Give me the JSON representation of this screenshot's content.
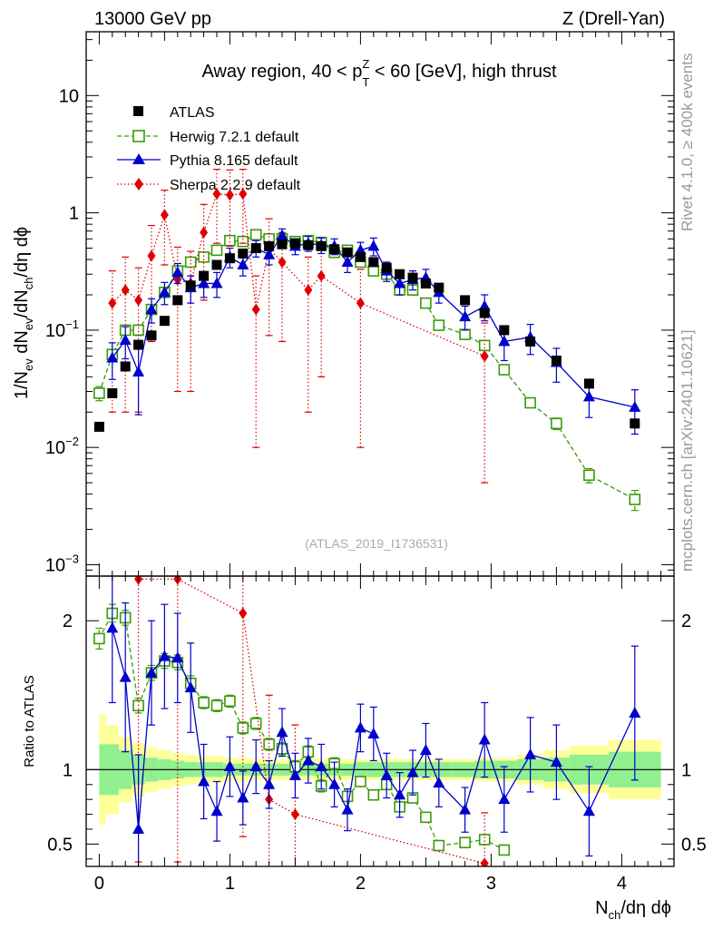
{
  "header": {
    "left": "13000 GeV pp",
    "right": "Z (Drell-Yan)"
  },
  "side_labels": {
    "top": "Rivet 4.1.0, ≥ 400k events",
    "bottom": "mcplots.cern.ch [arXiv:2401.10621]"
  },
  "watermark": "(ATLAS_2019_I1736531)",
  "colors": {
    "atlas": "#000000",
    "herwig": "#3a9a0a",
    "pythia": "#0000cc",
    "sherpa": "#e00000",
    "band_inner": "#90f090",
    "band_outer": "#ffff99"
  },
  "chart_data": [
    {
      "type": "scatter",
      "panel": "main",
      "title": "Away region, 40 < p_T^Z < 60 [GeV], high thrust",
      "title_parts": {
        "prefix": "Away region, 40 < p",
        "sub": "T",
        "sup": "Z",
        "suffix": " < 60 [GeV], high thrust"
      },
      "ylabel": "1/N_ev dN_ev/dN_ch/dη dϕ",
      "ylabel_parts": {
        "a": "1/N",
        "a_sub": "ev",
        "b": " dN",
        "b_sub": "ev",
        "c": "/dN",
        "c_sub": "ch",
        "d": "/dη dϕ"
      },
      "yscale": "log",
      "ylim": [
        0.0008,
        35
      ],
      "xlim": [
        -0.1,
        4.4
      ],
      "yticks": [
        {
          "value": 0.001,
          "base": "10",
          "exp": "−3"
        },
        {
          "value": 0.01,
          "base": "10",
          "exp": "−2"
        },
        {
          "value": 0.1,
          "base": "10",
          "exp": "−1"
        },
        {
          "value": 1,
          "base": "1",
          "exp": ""
        },
        {
          "value": 10,
          "base": "10",
          "exp": ""
        }
      ],
      "legend_position": "top-left",
      "series": [
        {
          "name": "ATLAS",
          "marker": "square",
          "x": [
            0.0,
            0.1,
            0.2,
            0.3,
            0.4,
            0.5,
            0.6,
            0.7,
            0.8,
            0.9,
            1.0,
            1.1,
            1.2,
            1.3,
            1.4,
            1.5,
            1.6,
            1.7,
            1.8,
            1.9,
            2.0,
            2.1,
            2.2,
            2.3,
            2.4,
            2.5,
            2.6,
            2.8,
            2.95,
            3.1,
            3.3,
            3.5,
            3.75,
            4.1
          ],
          "y": [
            0.015,
            0.029,
            0.049,
            0.075,
            0.09,
            0.12,
            0.18,
            0.24,
            0.29,
            0.36,
            0.41,
            0.45,
            0.5,
            0.52,
            0.54,
            0.55,
            0.53,
            0.52,
            0.49,
            0.46,
            0.42,
            0.38,
            0.34,
            0.3,
            0.28,
            0.25,
            0.23,
            0.18,
            0.14,
            0.1,
            0.08,
            0.055,
            0.035,
            0.016
          ]
        },
        {
          "name": "Herwig 7.2.1 default",
          "marker": "open-square",
          "line": "dashed",
          "x": [
            0.0,
            0.1,
            0.2,
            0.3,
            0.4,
            0.5,
            0.6,
            0.7,
            0.8,
            0.9,
            1.0,
            1.1,
            1.2,
            1.3,
            1.4,
            1.5,
            1.6,
            1.7,
            1.8,
            1.9,
            2.0,
            2.1,
            2.2,
            2.3,
            2.4,
            2.5,
            2.6,
            2.8,
            2.95,
            3.1,
            3.3,
            3.5,
            3.75,
            4.1
          ],
          "y": [
            0.029,
            0.062,
            0.1,
            0.1,
            0.15,
            0.21,
            0.32,
            0.38,
            0.42,
            0.48,
            0.58,
            0.57,
            0.65,
            0.6,
            0.6,
            0.57,
            0.58,
            0.56,
            0.46,
            0.48,
            0.38,
            0.32,
            0.3,
            0.22,
            0.22,
            0.17,
            0.11,
            0.092,
            0.074,
            0.046,
            0.024,
            0.016,
            0.0058,
            0.0036
          ],
          "err": [
            0.004,
            0.006,
            0.008,
            0.01,
            0.012,
            0.015,
            0.02,
            0.02,
            0.02,
            0.02,
            0.025,
            0.025,
            0.03,
            0.03,
            0.03,
            0.03,
            0.03,
            0.03,
            0.025,
            0.025,
            0.02,
            0.02,
            0.02,
            0.015,
            0.015,
            0.012,
            0.008,
            0.007,
            0.006,
            0.004,
            0.002,
            0.0018,
            0.0008,
            0.0007
          ]
        },
        {
          "name": "Pythia 8.165 default",
          "marker": "triangle",
          "line": "solid",
          "x": [
            0.1,
            0.2,
            0.3,
            0.4,
            0.5,
            0.6,
            0.7,
            0.8,
            0.9,
            1.0,
            1.1,
            1.2,
            1.3,
            1.4,
            1.5,
            1.6,
            1.7,
            1.8,
            1.9,
            2.0,
            2.1,
            2.2,
            2.3,
            2.4,
            2.5,
            2.6,
            2.8,
            2.95,
            3.1,
            3.3,
            3.5,
            3.75,
            4.1
          ],
          "y": [
            0.058,
            0.082,
            0.044,
            0.15,
            0.21,
            0.31,
            0.23,
            0.25,
            0.25,
            0.42,
            0.36,
            0.5,
            0.44,
            0.64,
            0.52,
            0.55,
            0.53,
            0.52,
            0.38,
            0.48,
            0.52,
            0.32,
            0.25,
            0.27,
            0.28,
            0.21,
            0.13,
            0.16,
            0.08,
            0.087,
            0.053,
            0.027,
            0.022
          ],
          "err": [
            0.02,
            0.025,
            0.025,
            0.035,
            0.045,
            0.06,
            0.06,
            0.06,
            0.06,
            0.08,
            0.07,
            0.08,
            0.08,
            0.09,
            0.08,
            0.08,
            0.08,
            0.08,
            0.07,
            0.08,
            0.09,
            0.06,
            0.05,
            0.05,
            0.05,
            0.04,
            0.03,
            0.04,
            0.025,
            0.025,
            0.017,
            0.009,
            0.009
          ]
        },
        {
          "name": "Sherpa 2.2.9 default",
          "marker": "diamond",
          "line": "dotted",
          "x": [
            0.1,
            0.2,
            0.3,
            0.4,
            0.5,
            0.6,
            0.7,
            0.8,
            0.9,
            1.0,
            1.1,
            1.2,
            1.3,
            1.4,
            1.6,
            1.7,
            2.0,
            2.95
          ],
          "y": [
            0.17,
            0.22,
            0.18,
            0.43,
            0.96,
            0.27,
            0.25,
            0.68,
            1.45,
            1.42,
            1.45,
            0.15,
            0.49,
            0.38,
            0.22,
            0.29,
            0.17,
            0.06
          ],
          "err": [
            0.15,
            0.2,
            0.16,
            0.35,
            0.6,
            0.24,
            0.22,
            0.5,
            0.9,
            0.9,
            0.9,
            0.14,
            0.4,
            0.3,
            0.2,
            0.25,
            0.16,
            0.055
          ]
        }
      ]
    },
    {
      "type": "scatter",
      "panel": "ratio",
      "ylabel": "Ratio to ATLAS",
      "xlabel": "N_ch/dη dϕ",
      "xlabel_parts": {
        "a": "N",
        "a_sub": "ch",
        "b": "/dη dϕ"
      },
      "ylim": [
        0.35,
        2.3
      ],
      "xlim": [
        -0.1,
        4.4
      ],
      "xticks": [
        0,
        1,
        2,
        3,
        4
      ],
      "yticks": [
        0.5,
        1,
        2
      ],
      "reference_line": 1,
      "band_edges": [
        0.0,
        0.05,
        0.15,
        0.25,
        0.35,
        0.45,
        0.55,
        0.65,
        0.75,
        0.85,
        0.95,
        1.05,
        1.15,
        1.25,
        1.35,
        1.45,
        1.55,
        1.65,
        1.75,
        1.85,
        1.95,
        2.05,
        2.15,
        2.25,
        2.35,
        2.45,
        2.55,
        2.7,
        2.875,
        3.025,
        3.2,
        3.4,
        3.6,
        3.9,
        4.3
      ],
      "band_inner": [
        0.17,
        0.17,
        0.13,
        0.1,
        0.08,
        0.07,
        0.06,
        0.05,
        0.05,
        0.05,
        0.04,
        0.04,
        0.04,
        0.04,
        0.04,
        0.04,
        0.04,
        0.04,
        0.04,
        0.04,
        0.05,
        0.05,
        0.05,
        0.05,
        0.05,
        0.05,
        0.05,
        0.05,
        0.06,
        0.06,
        0.07,
        0.08,
        0.1,
        0.12
      ],
      "band_outer": [
        0.37,
        0.3,
        0.22,
        0.18,
        0.15,
        0.13,
        0.11,
        0.1,
        0.09,
        0.09,
        0.08,
        0.08,
        0.07,
        0.07,
        0.07,
        0.07,
        0.07,
        0.07,
        0.07,
        0.07,
        0.07,
        0.07,
        0.07,
        0.07,
        0.07,
        0.07,
        0.07,
        0.07,
        0.08,
        0.08,
        0.1,
        0.13,
        0.16,
        0.2
      ],
      "series": [
        {
          "name": "Herwig 7.2.1 default",
          "x": [
            0.0,
            0.1,
            0.2,
            0.3,
            0.4,
            0.5,
            0.6,
            0.7,
            0.8,
            0.9,
            1.0,
            1.1,
            1.2,
            1.3,
            1.4,
            1.5,
            1.6,
            1.7,
            1.8,
            1.9,
            2.0,
            2.1,
            2.2,
            2.3,
            2.4,
            2.5,
            2.6,
            2.8,
            2.95,
            3.1
          ],
          "y": [
            1.88,
            2.05,
            2.02,
            1.43,
            1.65,
            1.73,
            1.72,
            1.58,
            1.45,
            1.43,
            1.46,
            1.28,
            1.31,
            1.17,
            1.14,
            1.02,
            1.12,
            0.89,
            1.04,
            0.82,
            0.92,
            0.83,
            0.9,
            0.75,
            0.81,
            0.68,
            0.49,
            0.51,
            0.53,
            0.46
          ],
          "err": [
            0.07,
            0.06,
            0.05,
            0.05,
            0.05,
            0.05,
            0.05,
            0.05,
            0.04,
            0.04,
            0.04,
            0.04,
            0.04,
            0.04,
            0.04,
            0.04,
            0.04,
            0.04,
            0.04,
            0.03,
            0.03,
            0.03,
            0.03,
            0.03,
            0.03,
            0.03,
            0.03,
            0.03,
            0.03,
            0.03
          ]
        },
        {
          "name": "Pythia 8.165 default",
          "x": [
            0.1,
            0.2,
            0.3,
            0.4,
            0.5,
            0.6,
            0.7,
            0.8,
            0.9,
            1.0,
            1.1,
            1.2,
            1.3,
            1.4,
            1.5,
            1.6,
            1.7,
            1.8,
            1.9,
            2.0,
            2.1,
            2.2,
            2.3,
            2.4,
            2.5,
            2.6,
            2.8,
            2.95,
            3.1,
            3.3,
            3.5,
            3.75,
            4.1
          ],
          "y": [
            1.95,
            1.62,
            0.6,
            1.65,
            1.76,
            1.75,
            1.55,
            0.92,
            0.72,
            1.02,
            0.81,
            1.02,
            0.9,
            1.25,
            0.96,
            1.06,
            1.02,
            0.9,
            0.73,
            1.28,
            1.24,
            0.96,
            0.83,
            0.98,
            1.13,
            0.91,
            0.73,
            1.2,
            0.8,
            1.1,
            1.05,
            0.72,
            1.38
          ],
          "err": [
            0.5,
            0.5,
            0.5,
            0.35,
            0.35,
            0.3,
            0.3,
            0.25,
            0.2,
            0.2,
            0.18,
            0.18,
            0.16,
            0.16,
            0.15,
            0.15,
            0.15,
            0.15,
            0.14,
            0.16,
            0.18,
            0.15,
            0.15,
            0.15,
            0.18,
            0.16,
            0.15,
            0.25,
            0.22,
            0.25,
            0.25,
            0.3,
            0.45
          ]
        },
        {
          "name": "Sherpa 2.2.9 default",
          "x": [
            0.3,
            0.6,
            1.1,
            1.3,
            1.5,
            2.95
          ],
          "y": [
            2.28,
            2.28,
            2.05,
            0.8,
            0.7,
            0.37
          ],
          "err": [
            1.9,
            1.9,
            1.5,
            0.7,
            0.6,
            0.34
          ]
        }
      ]
    }
  ]
}
